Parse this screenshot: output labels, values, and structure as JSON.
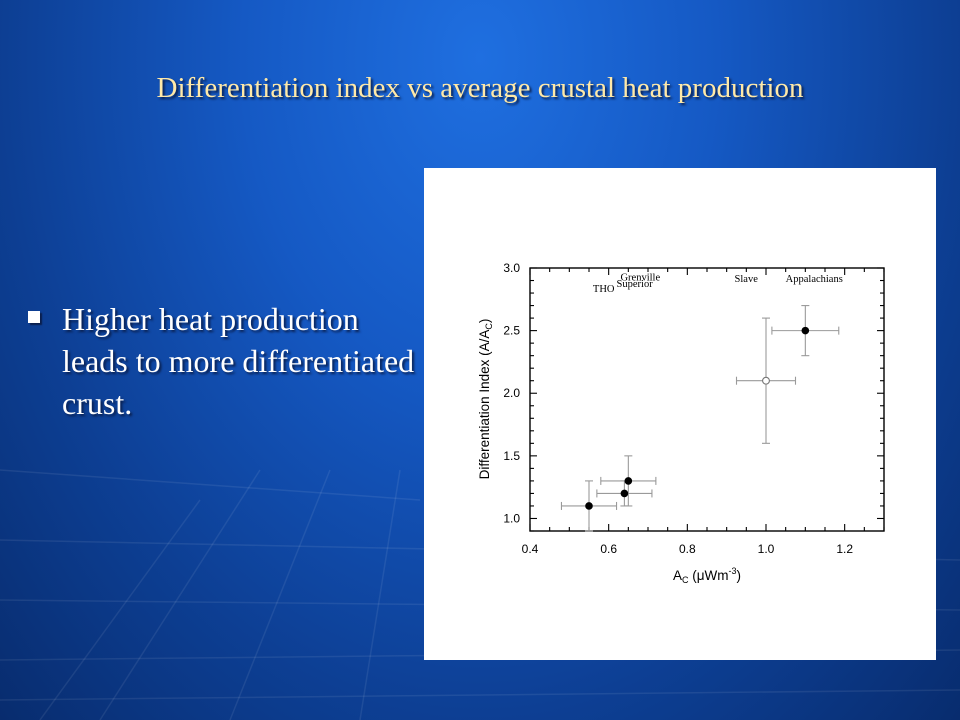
{
  "slide": {
    "title": "Differentiation index vs average crustal heat production",
    "bullets": [
      "Higher heat production leads to more differentiated crust."
    ]
  },
  "colors": {
    "title_text": "#ffe9a8",
    "body_text": "#ffffff"
  },
  "chart_data": {
    "type": "scatter",
    "xlabel": "A_C (μWm⁻³)",
    "ylabel": "Differentiation Index (A/A_C)",
    "xlim": [
      0.4,
      1.3
    ],
    "ylim": [
      0.9,
      3.0
    ],
    "xticks": [
      0.4,
      0.6,
      0.8,
      1.0,
      1.2
    ],
    "xtick_labels": [
      "0.4",
      "0.6",
      "0.8",
      "1.0",
      "1.2"
    ],
    "yticks": [
      1.0,
      1.5,
      2.0,
      2.5,
      3.0
    ],
    "ytick_labels": [
      "1.0",
      "1.5",
      "2.0",
      "2.5",
      "3.0"
    ],
    "grid": false,
    "points": [
      {
        "x": 0.55,
        "y": 1.1,
        "xerr": 0.07,
        "yerr": 0.2,
        "filled": true
      },
      {
        "x": 0.64,
        "y": 1.2,
        "xerr": 0.07,
        "yerr": 0.1,
        "filled": true
      },
      {
        "x": 0.65,
        "y": 1.3,
        "xerr": 0.07,
        "yerr": 0.2,
        "filled": true
      },
      {
        "x": 1.0,
        "y": 2.1,
        "xerr": 0.075,
        "yerr": 0.5,
        "filled": false
      },
      {
        "x": 1.1,
        "y": 2.5,
        "xerr": 0.085,
        "yerr": 0.2,
        "filled": true
      }
    ],
    "annotations": [
      {
        "text": "THO",
        "x": 0.56,
        "y": 2.81
      },
      {
        "text": "Superior",
        "x": 0.62,
        "y": 2.85
      },
      {
        "text": "Grenville",
        "x": 0.63,
        "y": 2.9
      },
      {
        "text": "Slave",
        "x": 0.92,
        "y": 2.89
      },
      {
        "text": "Appalachians",
        "x": 1.05,
        "y": 2.89
      }
    ]
  }
}
